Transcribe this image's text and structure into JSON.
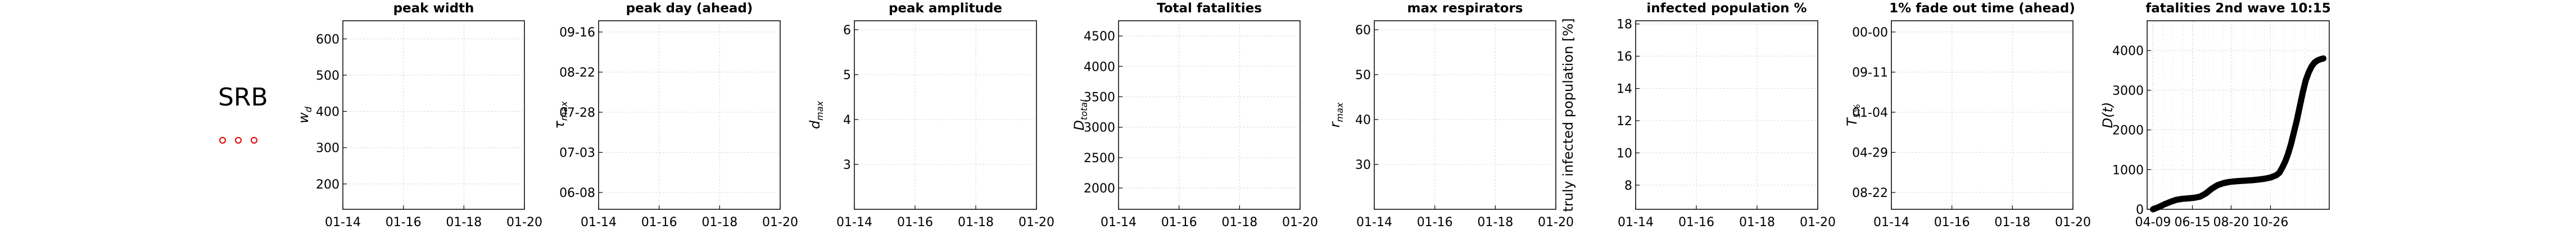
{
  "country_label": "SRB",
  "dots_color": "#e00000",
  "chart_data": [
    {
      "type": "scatter",
      "title": "peak width",
      "ylabel": "w_d",
      "ylabel_sub": "d",
      "ylabel_main": "w",
      "x_ticks": [
        "01-14",
        "01-16",
        "01-18",
        "01-20"
      ],
      "y_ticks": [
        "200",
        "300",
        "400",
        "500",
        "600"
      ],
      "ylim": [
        130,
        650
      ],
      "points": []
    },
    {
      "type": "scatter",
      "title": "peak day (ahead)",
      "ylabel_main": "τ",
      "ylabel_sub": "max",
      "x_ticks": [
        "01-14",
        "01-16",
        "01-18",
        "01-20"
      ],
      "y_ticks": [
        "06-08",
        "07-03",
        "07-28",
        "08-22",
        "09-16"
      ],
      "points": []
    },
    {
      "type": "scatter",
      "title": "peak amplitude",
      "ylabel_main": "d",
      "ylabel_sub": "max",
      "x_ticks": [
        "01-14",
        "01-16",
        "01-18",
        "01-20"
      ],
      "y_ticks": [
        "3",
        "4",
        "5",
        "6"
      ],
      "ylim": [
        2.0,
        6.2
      ],
      "points": []
    },
    {
      "type": "scatter",
      "title": "Total fatalities",
      "ylabel_main": "D",
      "ylabel_sub": "total",
      "x_ticks": [
        "01-14",
        "01-16",
        "01-18",
        "01-20"
      ],
      "y_ticks": [
        "2000",
        "2500",
        "3000",
        "3500",
        "4000",
        "4500"
      ],
      "ylim": [
        1650,
        4750
      ],
      "points": []
    },
    {
      "type": "scatter",
      "title": "max respirators",
      "ylabel_main": "r",
      "ylabel_sub": "max",
      "x_ticks": [
        "01-14",
        "01-16",
        "01-18",
        "01-20"
      ],
      "y_ticks": [
        "30",
        "40",
        "50",
        "60"
      ],
      "ylim": [
        20,
        62
      ],
      "points": []
    },
    {
      "type": "scatter",
      "title": "infected population %",
      "ylabel": "truly infected population [%]",
      "x_ticks": [
        "01-14",
        "01-16",
        "01-18",
        "01-20"
      ],
      "y_ticks": [
        "8",
        "10",
        "12",
        "14",
        "16",
        "18"
      ],
      "ylim": [
        6.5,
        18.2
      ],
      "points": []
    },
    {
      "type": "scatter",
      "title": "1% fade out time (ahead)",
      "ylabel_main": "T",
      "ylabel_sub": "1%",
      "x_ticks": [
        "01-14",
        "01-16",
        "01-18",
        "01-20"
      ],
      "y_ticks": [
        "08-22",
        "04-29",
        "01-04",
        "09-11",
        "00-00"
      ],
      "points": []
    },
    {
      "type": "line",
      "title": "fatalities 2nd wave 10:15",
      "ylabel": "D(t)",
      "x_ticks": [
        "04-09",
        "06-15",
        "08-20",
        "10-26"
      ],
      "x_tick_days": [
        0,
        67,
        133,
        200
      ],
      "y_ticks": [
        "0",
        "1000",
        "2000",
        "3000",
        "4000"
      ],
      "xlim": [
        -10,
        300
      ],
      "ylim": [
        0,
        4750
      ],
      "grid": true,
      "series": [
        {
          "days": [
            0,
            10,
            20,
            30,
            40,
            50,
            60,
            70,
            80,
            90,
            100,
            110,
            120,
            130,
            140,
            150,
            160,
            170,
            180,
            190,
            200,
            210,
            215,
            220,
            225,
            230,
            235,
            240,
            245,
            250,
            255,
            260,
            265,
            270,
            275,
            280,
            285,
            290
          ],
          "values": [
            0,
            60,
            130,
            190,
            240,
            265,
            275,
            290,
            320,
            400,
            520,
            610,
            660,
            690,
            705,
            715,
            725,
            735,
            750,
            770,
            800,
            860,
            920,
            1050,
            1200,
            1400,
            1650,
            1950,
            2250,
            2600,
            2950,
            3250,
            3450,
            3600,
            3700,
            3750,
            3780,
            3800
          ]
        }
      ]
    }
  ]
}
